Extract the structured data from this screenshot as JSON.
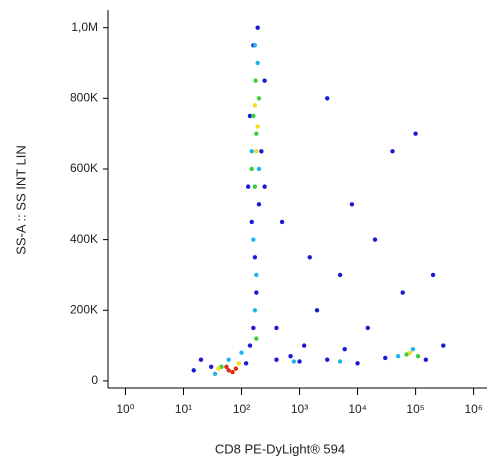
{
  "chart_data": {
    "type": "scatter",
    "x_label": "CD8 PE-DyLight® 594",
    "y_label": "SS-A :: SS INT LIN",
    "xscale": "log",
    "xlim": [
      0.5,
      1700000
    ],
    "xticks": [
      {
        "value": 1,
        "label": "10⁰"
      },
      {
        "value": 10,
        "label": "10¹"
      },
      {
        "value": 100,
        "label": "10²"
      },
      {
        "value": 1000,
        "label": "10³"
      },
      {
        "value": 10000,
        "label": "10⁴"
      },
      {
        "value": 100000,
        "label": "10⁵"
      },
      {
        "value": 1000000,
        "label": "10⁶"
      }
    ],
    "ylim": [
      -20000,
      1050000
    ],
    "yticks": [
      0,
      {
        "value": 200000,
        "label": "200K"
      },
      {
        "value": 400000,
        "label": "400K"
      },
      {
        "value": 600000,
        "label": "600K"
      },
      {
        "value": 800000,
        "label": "800K"
      },
      {
        "value": 1000000,
        "label": "1,0M"
      }
    ],
    "series": [
      {
        "color": "#1a1ad6",
        "x": [
          30,
          120,
          140,
          160,
          180,
          170,
          150,
          200,
          130,
          220,
          140,
          250,
          160,
          190,
          400,
          1000,
          3000,
          10000,
          30000,
          150000,
          700,
          2000,
          5000,
          20000,
          8000,
          40000,
          100000,
          60000,
          15000,
          1500,
          500,
          3000,
          20,
          15,
          300000,
          200000,
          1200,
          6000,
          400,
          250
        ],
        "values": [
          40000,
          50000,
          100000,
          150000,
          250000,
          350000,
          450000,
          500000,
          550000,
          650000,
          750000,
          850000,
          950000,
          1000000,
          60000,
          55000,
          60000,
          50000,
          65000,
          60000,
          70000,
          200000,
          300000,
          400000,
          500000,
          650000,
          700000,
          250000,
          150000,
          350000,
          450000,
          800000,
          60000,
          30000,
          100000,
          300000,
          100000,
          90000,
          150000,
          550000
        ]
      },
      {
        "color": "#1fb4f0",
        "x": [
          60,
          100,
          170,
          180,
          160,
          200,
          150,
          190,
          170,
          800,
          5000,
          50000,
          90000,
          35
        ],
        "values": [
          60000,
          80000,
          200000,
          300000,
          400000,
          600000,
          650000,
          900000,
          950000,
          55000,
          55000,
          70000,
          90000,
          20000
        ]
      },
      {
        "color": "#3ccf3c",
        "x": [
          170,
          180,
          160,
          200,
          175,
          150,
          180,
          70000,
          110000,
          45
        ],
        "values": [
          550000,
          700000,
          750000,
          800000,
          850000,
          600000,
          120000,
          75000,
          70000,
          40000
        ]
      },
      {
        "color": "#eee020",
        "x": [
          180,
          170,
          190,
          80000,
          90,
          40
        ],
        "values": [
          650000,
          780000,
          720000,
          80000,
          50000,
          35000
        ]
      },
      {
        "color": "#e02a10",
        "x": [
          60,
          70,
          55,
          80
        ],
        "values": [
          30000,
          25000,
          40000,
          35000
        ]
      }
    ]
  }
}
